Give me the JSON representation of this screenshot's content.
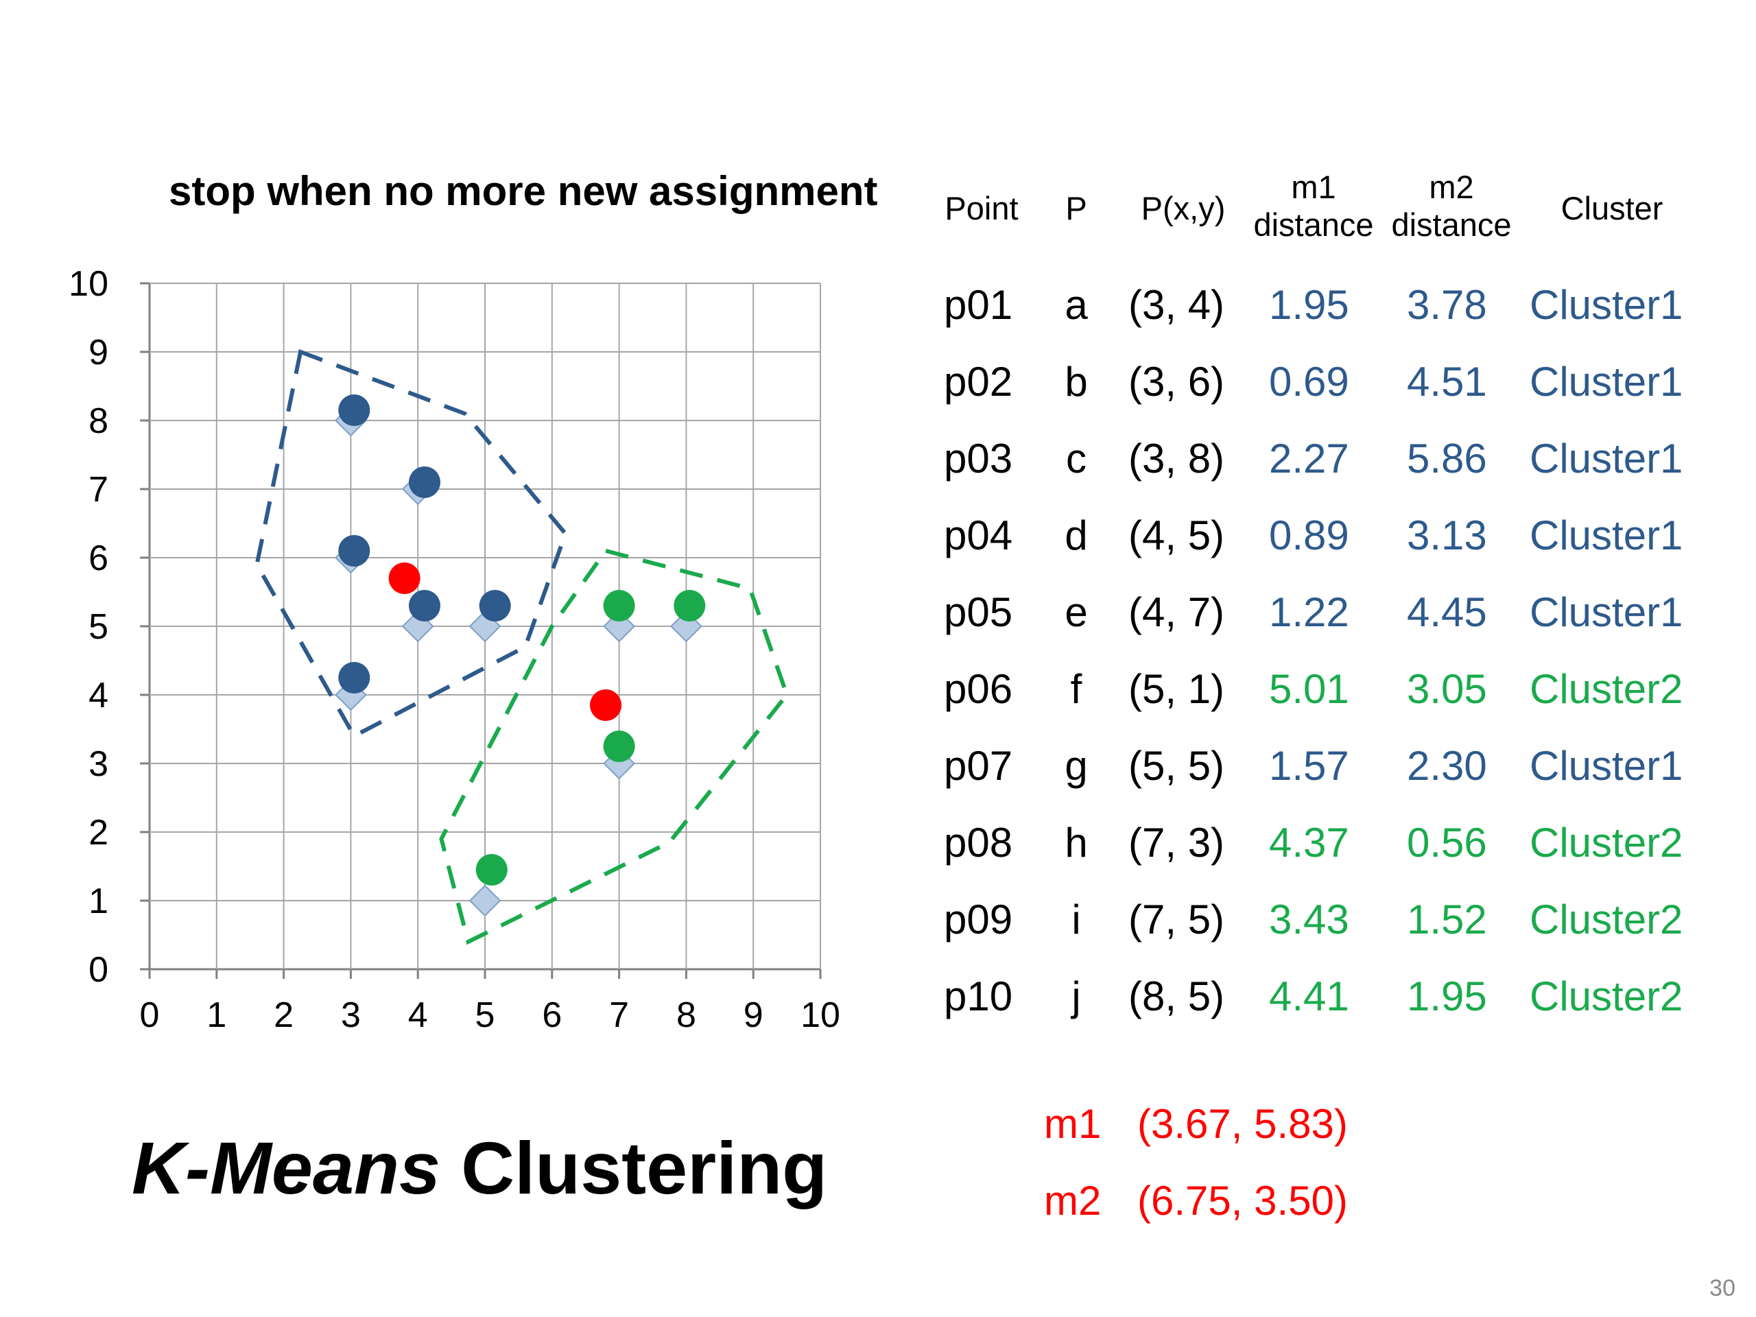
{
  "chart_data": {
    "type": "scatter",
    "title": "stop when no more new assignment",
    "xlabel": "",
    "ylabel": "",
    "xlim": [
      0,
      10
    ],
    "ylim": [
      0,
      10
    ],
    "xticks": [
      "0",
      "1",
      "2",
      "3",
      "4",
      "5",
      "6",
      "7",
      "8",
      "9",
      "10"
    ],
    "yticks": [
      "0",
      "1",
      "2",
      "3",
      "4",
      "5",
      "6",
      "7",
      "8",
      "9",
      "10"
    ],
    "grid": true,
    "series": [
      {
        "kind": "data-points",
        "color": "#b8cce4",
        "marker": "diamond",
        "points": [
          [
            3,
            4
          ],
          [
            3,
            6
          ],
          [
            3,
            8
          ],
          [
            4,
            5
          ],
          [
            4,
            7
          ],
          [
            5,
            1
          ],
          [
            5,
            5
          ],
          [
            7,
            3
          ],
          [
            7,
            5
          ],
          [
            8,
            5
          ]
        ]
      },
      {
        "kind": "cluster1-points",
        "color": "#2e5a8c",
        "marker": "circle",
        "points": [
          [
            3.05,
            4.25
          ],
          [
            3.05,
            6.1
          ],
          [
            3.05,
            8.15
          ],
          [
            4.1,
            5.3
          ],
          [
            4.1,
            7.1
          ],
          [
            5.15,
            5.3
          ]
        ]
      },
      {
        "kind": "cluster2-points",
        "color": "#1aaa4c",
        "marker": "circle",
        "points": [
          [
            5.1,
            1.45
          ],
          [
            7.0,
            3.25
          ],
          [
            7.0,
            5.3
          ],
          [
            8.05,
            5.3
          ]
        ]
      },
      {
        "kind": "centroids",
        "color": "#ff0000",
        "marker": "circle",
        "points": [
          [
            3.8,
            5.7
          ],
          [
            6.8,
            3.85
          ]
        ]
      }
    ],
    "hulls": [
      {
        "color": "#2e5a8c",
        "vertices": [
          [
            2.25,
            9.0
          ],
          [
            4.7,
            8.1
          ],
          [
            6.2,
            6.35
          ],
          [
            5.6,
            4.7
          ],
          [
            3.05,
            3.4
          ],
          [
            1.6,
            5.9
          ]
        ]
      },
      {
        "color": "#1aaa4c",
        "vertices": [
          [
            6.8,
            6.1
          ],
          [
            8.95,
            5.55
          ],
          [
            9.5,
            4.0
          ],
          [
            7.75,
            1.85
          ],
          [
            4.75,
            0.4
          ],
          [
            4.35,
            1.9
          ],
          [
            6.0,
            5.0
          ]
        ]
      }
    ]
  },
  "slide": {
    "title_italic": "K-Means",
    "title_rest": " Clustering",
    "page_number": "30"
  },
  "table": {
    "headers": {
      "point": "Point",
      "p": "P",
      "pxy": "P(x,y)",
      "m1_line1": "m1",
      "m1_line2": "distance",
      "m2_line1": "m2",
      "m2_line2": "distance",
      "cluster": "Cluster"
    },
    "rows": [
      {
        "point": "p01",
        "p": "a",
        "xy": "(3, 4)",
        "m1": "1.95",
        "m2": "3.78",
        "cluster": "Cluster1",
        "color": "blue"
      },
      {
        "point": "p02",
        "p": "b",
        "xy": "(3, 6)",
        "m1": "0.69",
        "m2": "4.51",
        "cluster": "Cluster1",
        "color": "blue"
      },
      {
        "point": "p03",
        "p": "c",
        "xy": "(3, 8)",
        "m1": "2.27",
        "m2": "5.86",
        "cluster": "Cluster1",
        "color": "blue"
      },
      {
        "point": "p04",
        "p": "d",
        "xy": "(4, 5)",
        "m1": "0.89",
        "m2": "3.13",
        "cluster": "Cluster1",
        "color": "blue"
      },
      {
        "point": "p05",
        "p": "e",
        "xy": "(4, 7)",
        "m1": "1.22",
        "m2": "4.45",
        "cluster": "Cluster1",
        "color": "blue"
      },
      {
        "point": "p06",
        "p": "f",
        "xy": "(5, 1)",
        "m1": "5.01",
        "m2": "3.05",
        "cluster": "Cluster2",
        "color": "green"
      },
      {
        "point": "p07",
        "p": "g",
        "xy": "(5, 5)",
        "m1": "1.57",
        "m2": "2.30",
        "cluster": "Cluster1",
        "color": "blue"
      },
      {
        "point": "p08",
        "p": "h",
        "xy": "(7, 3)",
        "m1": "4.37",
        "m2": "0.56",
        "cluster": "Cluster2",
        "color": "green"
      },
      {
        "point": "p09",
        "p": "i",
        "xy": "(7, 5)",
        "m1": "3.43",
        "m2": "1.52",
        "cluster": "Cluster2",
        "color": "green"
      },
      {
        "point": "p10",
        "p": "j",
        "xy": "(8, 5)",
        "m1": "4.41",
        "m2": "1.95",
        "cluster": "Cluster2",
        "color": "green"
      }
    ]
  },
  "centroids": [
    {
      "label": "m1",
      "value": "(3.67, 5.83)"
    },
    {
      "label": "m2",
      "value": "(6.75, 3.50)"
    }
  ]
}
